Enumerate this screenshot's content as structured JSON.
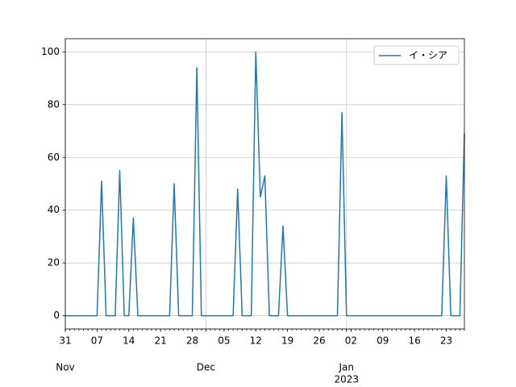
{
  "chart_data": {
    "type": "line",
    "x": [
      "2022-10-31",
      "2022-11-01",
      "2022-11-02",
      "2022-11-03",
      "2022-11-04",
      "2022-11-05",
      "2022-11-06",
      "2022-11-07",
      "2022-11-08",
      "2022-11-09",
      "2022-11-10",
      "2022-11-11",
      "2022-11-12",
      "2022-11-13",
      "2022-11-14",
      "2022-11-15",
      "2022-11-16",
      "2022-11-17",
      "2022-11-18",
      "2022-11-19",
      "2022-11-20",
      "2022-11-21",
      "2022-11-22",
      "2022-11-23",
      "2022-11-24",
      "2022-11-25",
      "2022-11-26",
      "2022-11-27",
      "2022-11-28",
      "2022-11-29",
      "2022-11-30",
      "2022-12-01",
      "2022-12-02",
      "2022-12-03",
      "2022-12-04",
      "2022-12-05",
      "2022-12-06",
      "2022-12-07",
      "2022-12-08",
      "2022-12-09",
      "2022-12-10",
      "2022-12-11",
      "2022-12-12",
      "2022-12-13",
      "2022-12-14",
      "2022-12-15",
      "2022-12-16",
      "2022-12-17",
      "2022-12-18",
      "2022-12-19",
      "2022-12-20",
      "2022-12-21",
      "2022-12-22",
      "2022-12-23",
      "2022-12-24",
      "2022-12-25",
      "2022-12-26",
      "2022-12-27",
      "2022-12-28",
      "2022-12-29",
      "2022-12-30",
      "2022-12-31",
      "2023-01-01",
      "2023-01-02",
      "2023-01-03",
      "2023-01-04",
      "2023-01-05",
      "2023-01-06",
      "2023-01-07",
      "2023-01-08",
      "2023-01-09",
      "2023-01-10",
      "2023-01-11",
      "2023-01-12",
      "2023-01-13",
      "2023-01-14",
      "2023-01-15",
      "2023-01-16",
      "2023-01-17",
      "2023-01-18",
      "2023-01-19",
      "2023-01-20",
      "2023-01-21",
      "2023-01-22",
      "2023-01-23",
      "2023-01-24",
      "2023-01-25",
      "2023-01-26",
      "2023-01-27"
    ],
    "series": [
      {
        "name": "イ・シア",
        "color": "#1f77b4",
        "values": [
          0,
          0,
          0,
          0,
          0,
          0,
          0,
          0,
          51,
          0,
          0,
          0,
          55,
          0,
          0,
          37,
          0,
          0,
          0,
          0,
          0,
          0,
          0,
          0,
          50,
          0,
          0,
          0,
          0,
          94,
          0,
          0,
          0,
          0,
          0,
          0,
          0,
          0,
          48,
          0,
          0,
          0,
          100,
          45,
          53,
          0,
          0,
          0,
          34,
          0,
          0,
          0,
          0,
          0,
          0,
          0,
          0,
          0,
          0,
          0,
          0,
          77,
          0,
          0,
          0,
          0,
          0,
          0,
          0,
          0,
          0,
          0,
          0,
          0,
          0,
          0,
          0,
          0,
          0,
          0,
          0,
          0,
          0,
          0,
          53,
          0,
          0,
          0,
          69
        ]
      }
    ],
    "xlim": [
      "2022-10-31",
      "2023-01-27"
    ],
    "xticks": [
      {
        "value": "2022-10-31",
        "label": "31"
      },
      {
        "value": "2022-11-07",
        "label": "07"
      },
      {
        "value": "2022-11-14",
        "label": "14"
      },
      {
        "value": "2022-11-21",
        "label": "21"
      },
      {
        "value": "2022-11-28",
        "label": "28"
      },
      {
        "value": "2022-12-05",
        "label": "05"
      },
      {
        "value": "2022-12-12",
        "label": "12"
      },
      {
        "value": "2022-12-19",
        "label": "19"
      },
      {
        "value": "2022-12-26",
        "label": "26"
      },
      {
        "value": "2023-01-02",
        "label": "02"
      },
      {
        "value": "2023-01-09",
        "label": "09"
      },
      {
        "value": "2023-01-16",
        "label": "16"
      },
      {
        "value": "2023-01-23",
        "label": "23"
      }
    ],
    "month_ticks": [
      {
        "value": "2022-10-31",
        "label": "Nov"
      },
      {
        "value": "2022-12-01",
        "label": "Dec"
      },
      {
        "value": "2023-01-01",
        "label": "Jan"
      }
    ],
    "year_ticks": [
      {
        "value": "2023-01-01",
        "label": "2023"
      }
    ],
    "ylim": [
      -5,
      105
    ],
    "yticks": [
      0,
      20,
      40,
      60,
      80,
      100
    ],
    "grid": true,
    "legend": "upper right"
  }
}
